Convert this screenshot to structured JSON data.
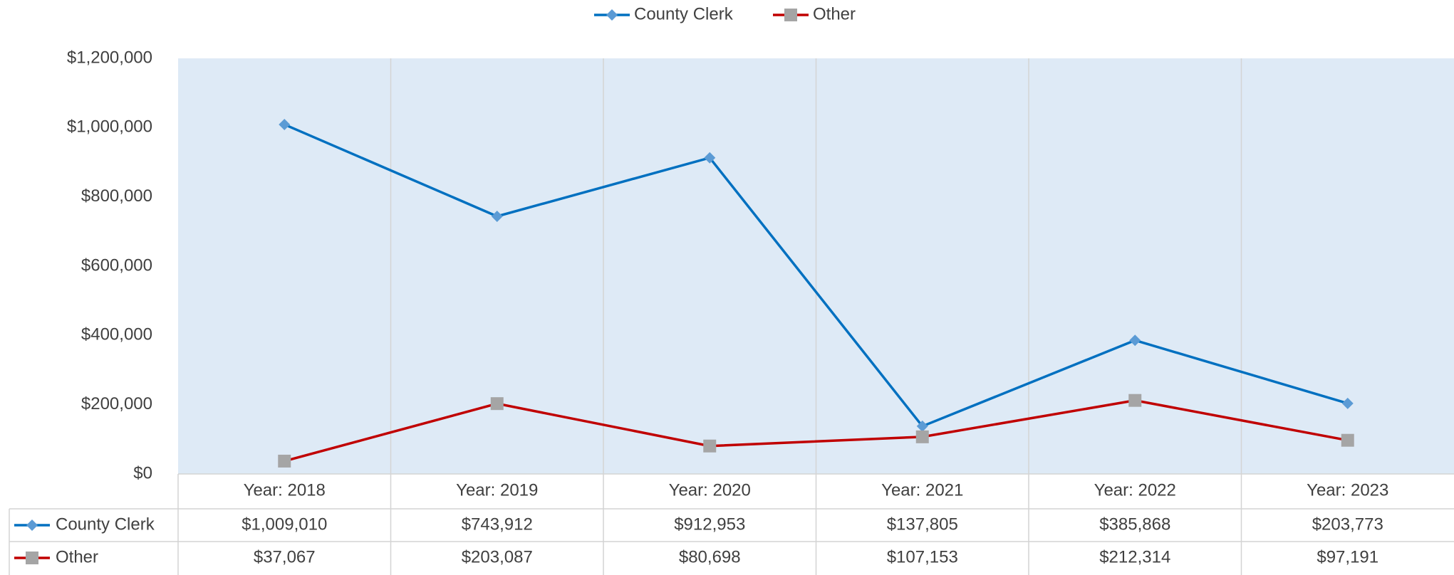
{
  "chart_data": {
    "type": "line",
    "categories": [
      "Year: 2018",
      "Year: 2019",
      "Year: 2020",
      "Year: 2021",
      "Year: 2022",
      "Year: 2023"
    ],
    "series": [
      {
        "name": "County Clerk",
        "color": "#0070c0",
        "marker": "diamond",
        "marker_color": "#5b9bd5",
        "values": [
          1009010,
          743912,
          912953,
          137805,
          385868,
          203773
        ],
        "value_labels": [
          "$1,009,010",
          "$743,912",
          "$912,953",
          "$137,805",
          "$385,868",
          "$203,773"
        ]
      },
      {
        "name": "Other",
        "color": "#c00000",
        "marker": "square",
        "marker_color": "#a5a5a5",
        "values": [
          37067,
          203087,
          80698,
          107153,
          212314,
          97191
        ],
        "value_labels": [
          "$37,067",
          "$203,087",
          "$80,698",
          "$107,153",
          "$212,314",
          "$97,191"
        ]
      }
    ],
    "ylim": [
      0,
      1200000
    ],
    "yticks": [
      {
        "value": 0,
        "label": "$0"
      },
      {
        "value": 200000,
        "label": "$200,000"
      },
      {
        "value": 400000,
        "label": "$400,000"
      },
      {
        "value": 600000,
        "label": "$600,000"
      },
      {
        "value": 800000,
        "label": "$800,000"
      },
      {
        "value": 1000000,
        "label": "$1,000,000"
      },
      {
        "value": 1200000,
        "label": "$1,200,000"
      }
    ],
    "legend": "top",
    "plot_background": "#deeaf6"
  }
}
